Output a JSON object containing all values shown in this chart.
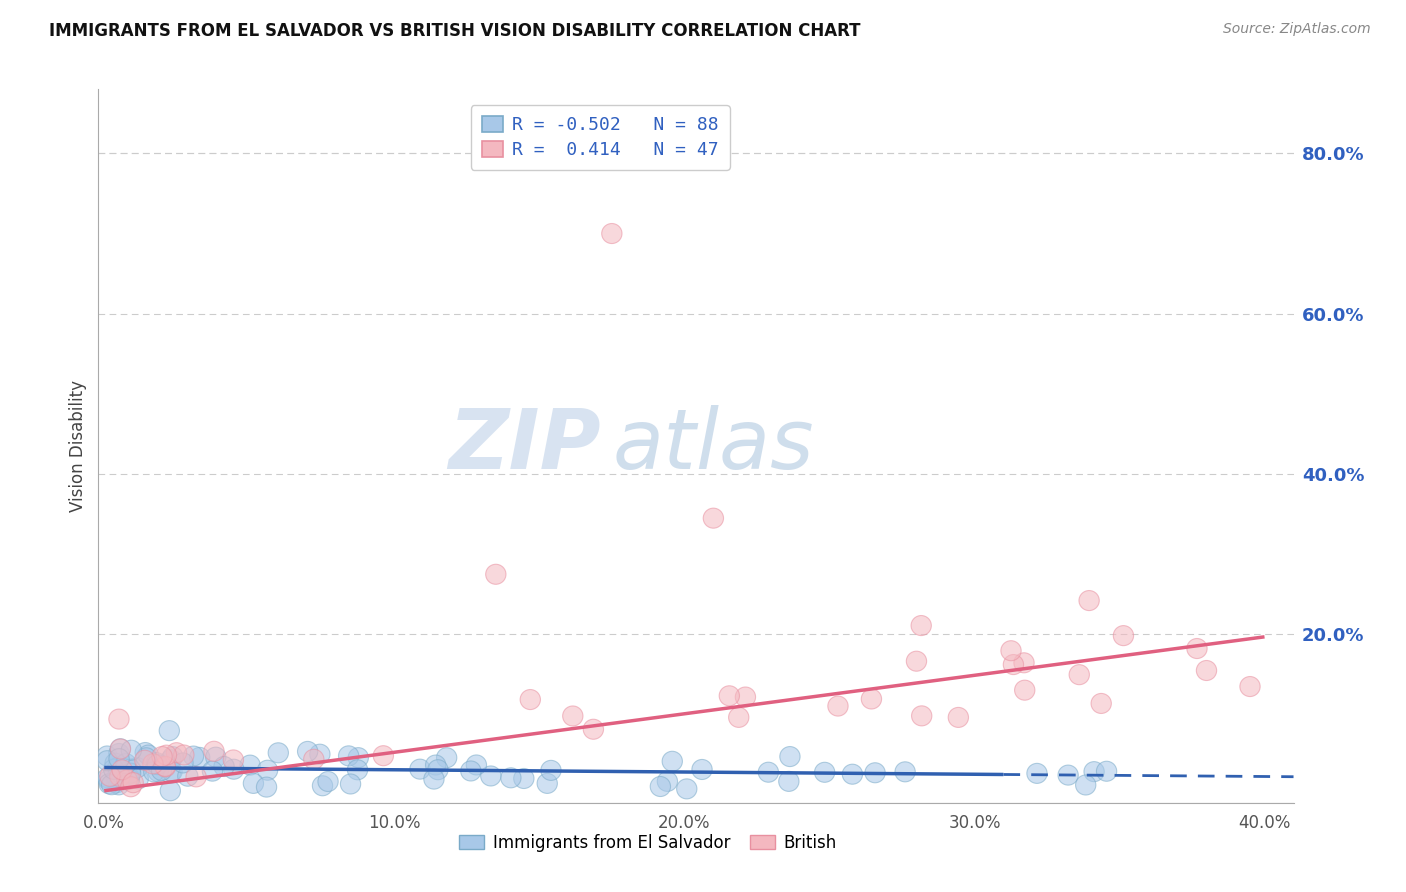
{
  "title": "IMMIGRANTS FROM EL SALVADOR VS BRITISH VISION DISABILITY CORRELATION CHART",
  "source": "Source: ZipAtlas.com",
  "xlabel_blue": "Immigrants from El Salvador",
  "xlabel_pink": "British",
  "ylabel": "Vision Disability",
  "xlim": [
    -0.002,
    0.41
  ],
  "ylim": [
    -0.01,
    0.88
  ],
  "right_yticks": [
    0.2,
    0.4,
    0.6,
    0.8
  ],
  "right_yticklabels": [
    "20.0%",
    "40.0%",
    "60.0%",
    "80.0%"
  ],
  "xticks": [
    0.0,
    0.1,
    0.2,
    0.3,
    0.4
  ],
  "xticklabels": [
    "0.0%",
    "10.0%",
    "20.0%",
    "30.0%",
    "40.0%"
  ],
  "blue_R": -0.502,
  "blue_N": 88,
  "pink_R": 0.414,
  "pink_N": 47,
  "blue_color": "#a8c8e8",
  "pink_color": "#f4b8c0",
  "blue_edge_color": "#7aaac8",
  "pink_edge_color": "#e890a0",
  "blue_line_color": "#3060b0",
  "pink_line_color": "#e06080",
  "watermark_zip": "ZIP",
  "watermark_atlas": "atlas",
  "legend_text_color": "#3060c0",
  "legend_R_color": "#3060c0"
}
